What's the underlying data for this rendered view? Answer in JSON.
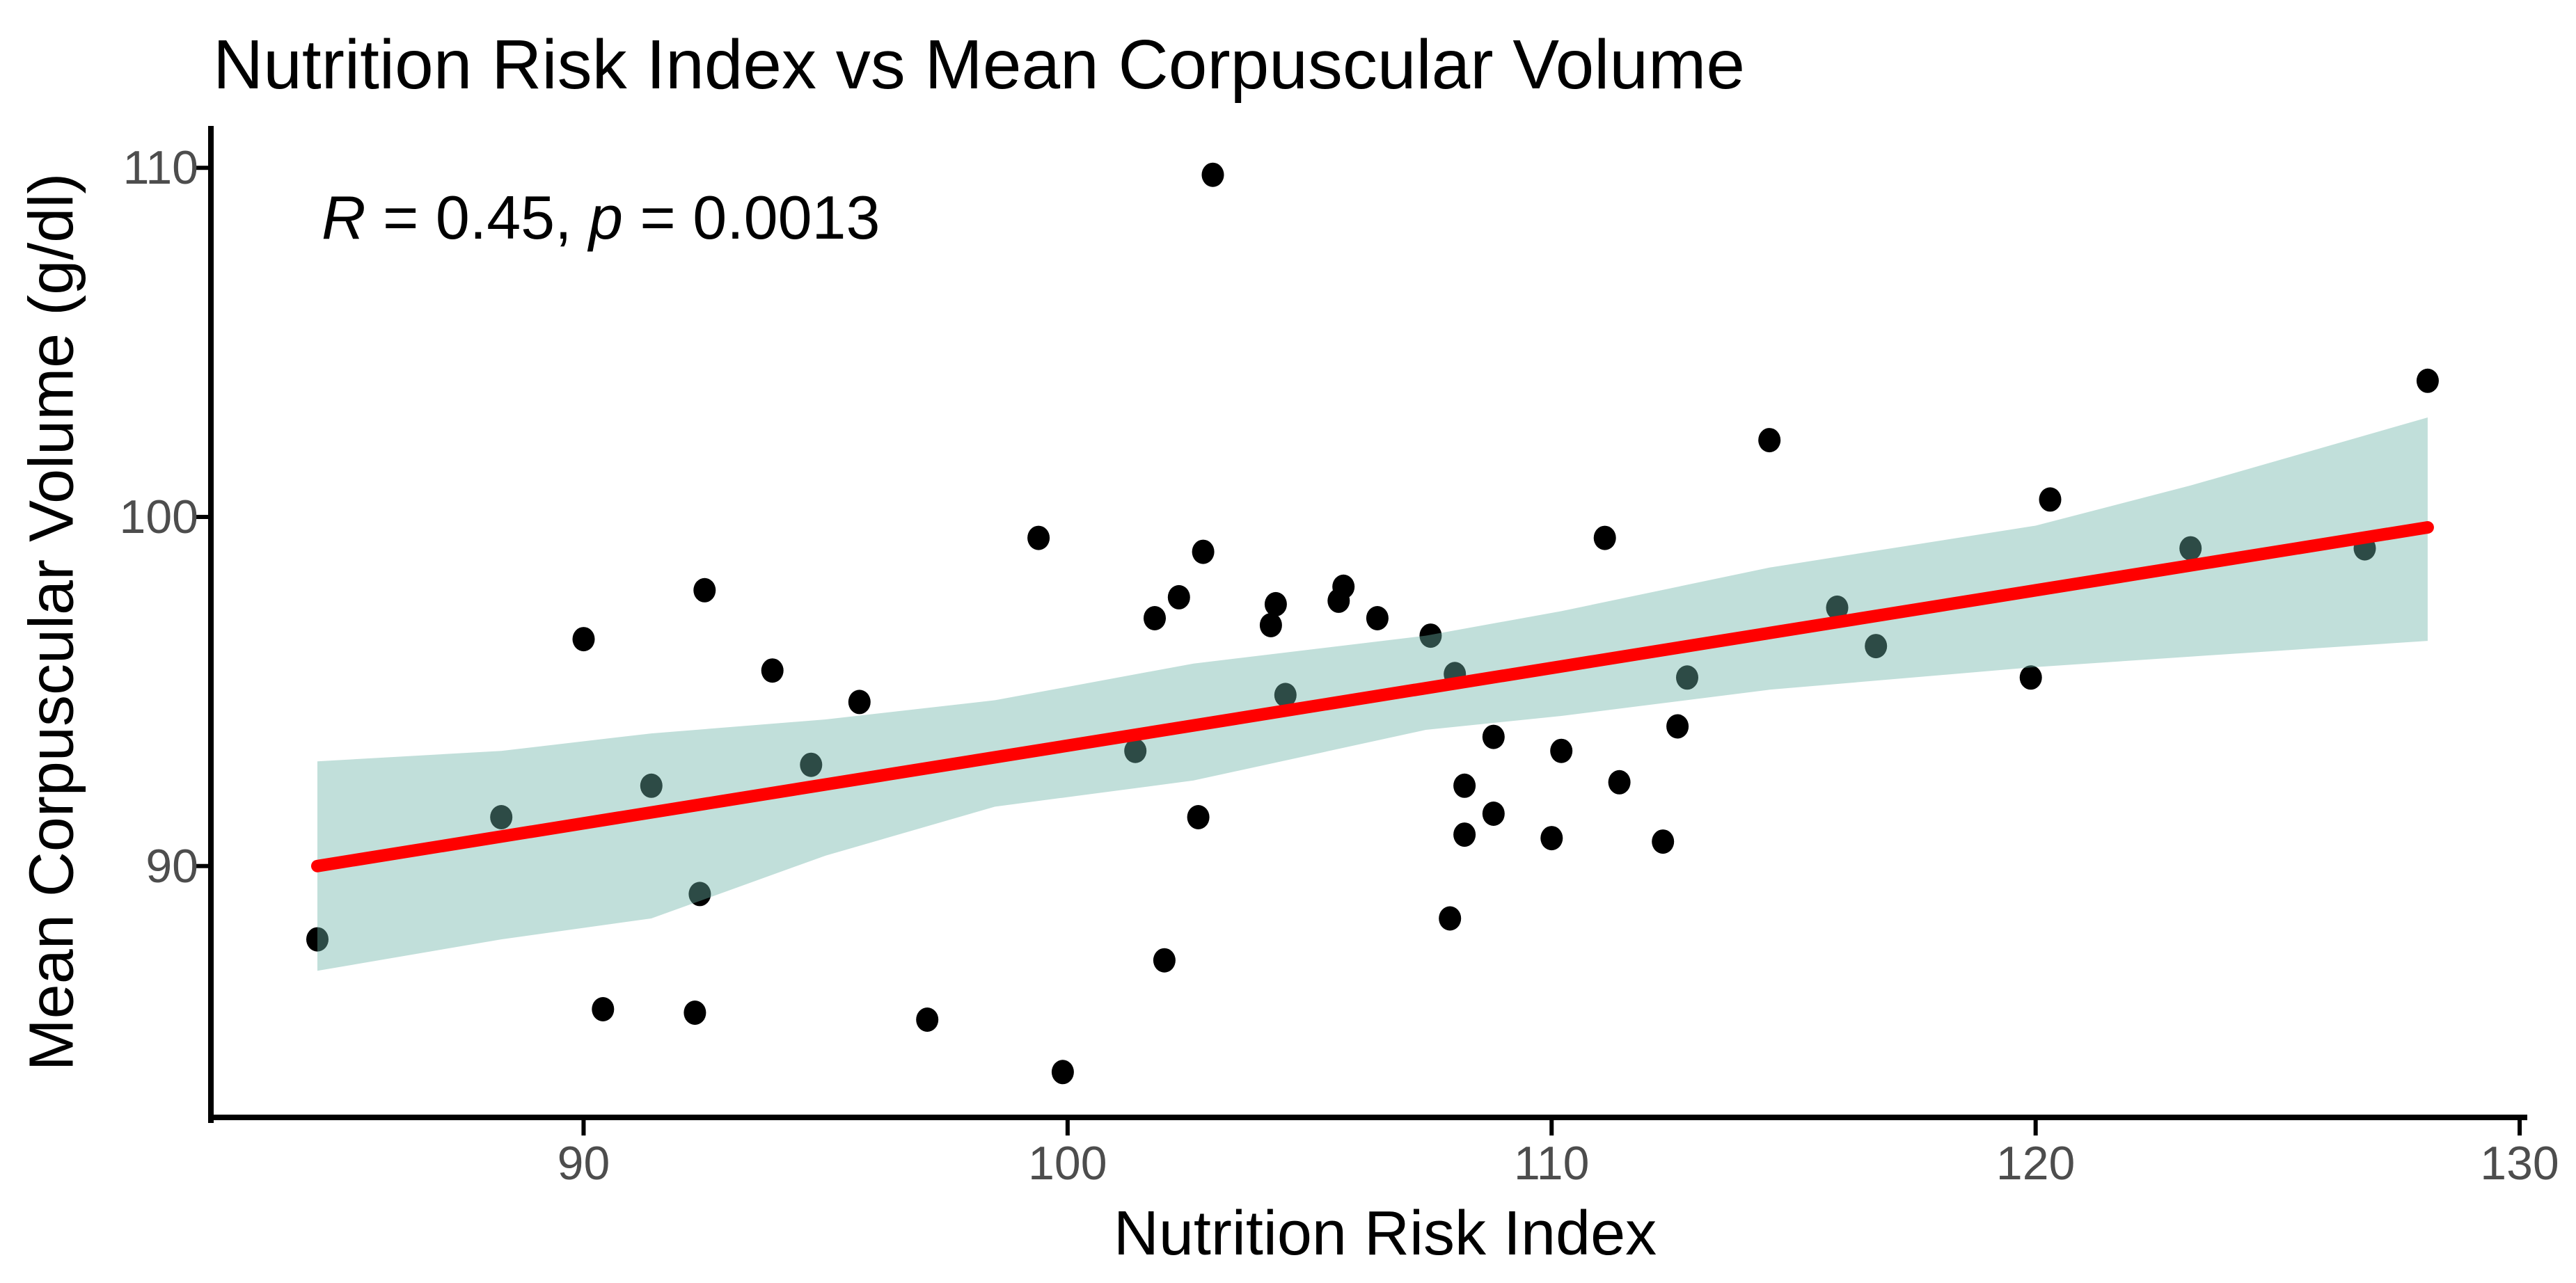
{
  "chart_data": {
    "type": "scatter",
    "title": "Nutrition Risk Index vs Mean Corpuscular Volume",
    "xlabel": "Nutrition Risk Index",
    "ylabel": "Mean Corpuscular Volume (g/dl)",
    "annotation": "R = 0.45, p = 0.0013",
    "legend": "none",
    "grid": false,
    "x_ticks": [
      90,
      100,
      110,
      120,
      130
    ],
    "y_ticks": [
      90,
      100,
      110
    ],
    "xlim": [
      82.3,
      130.1
    ],
    "ylim": [
      82.8,
      111.2
    ],
    "points": [
      [
        84.5,
        87.9
      ],
      [
        88.3,
        91.4
      ],
      [
        90.0,
        96.5
      ],
      [
        90.4,
        85.9
      ],
      [
        91.4,
        92.3
      ],
      [
        92.3,
        85.8
      ],
      [
        92.4,
        89.2
      ],
      [
        92.5,
        97.9
      ],
      [
        93.9,
        95.6
      ],
      [
        94.7,
        92.9
      ],
      [
        95.7,
        94.7
      ],
      [
        97.1,
        85.6
      ],
      [
        99.4,
        99.4
      ],
      [
        99.9,
        84.1
      ],
      [
        101.4,
        93.3
      ],
      [
        101.8,
        97.1
      ],
      [
        102.0,
        87.3
      ],
      [
        102.3,
        97.7
      ],
      [
        102.7,
        91.4
      ],
      [
        102.8,
        99.0
      ],
      [
        103.0,
        109.8
      ],
      [
        104.2,
        96.9
      ],
      [
        104.3,
        97.5
      ],
      [
        104.5,
        94.9
      ],
      [
        105.6,
        97.6
      ],
      [
        105.7,
        98.0
      ],
      [
        106.4,
        97.1
      ],
      [
        107.5,
        96.6
      ],
      [
        107.9,
        88.5
      ],
      [
        108.0,
        95.5
      ],
      [
        108.2,
        90.9
      ],
      [
        108.2,
        92.3
      ],
      [
        108.8,
        91.5
      ],
      [
        108.8,
        93.7
      ],
      [
        110.0,
        90.8
      ],
      [
        110.2,
        93.3
      ],
      [
        111.1,
        99.4
      ],
      [
        111.4,
        92.4
      ],
      [
        112.3,
        90.7
      ],
      [
        112.6,
        94.0
      ],
      [
        112.8,
        95.4
      ],
      [
        114.5,
        102.2
      ],
      [
        115.9,
        97.4
      ],
      [
        116.7,
        96.3
      ],
      [
        119.9,
        95.4
      ],
      [
        120.3,
        100.5
      ],
      [
        123.2,
        99.1
      ],
      [
        126.8,
        99.1
      ],
      [
        128.1,
        103.9
      ]
    ],
    "regression_line": {
      "x1": 84.5,
      "y1": 90.0,
      "x2": 128.1,
      "y2": 99.7
    },
    "confidence_band": {
      "x": [
        84.5,
        88.3,
        91.4,
        95.0,
        98.5,
        102.6,
        107.4,
        110.2,
        114.5,
        120.0,
        123.2,
        128.1
      ],
      "upper": [
        93.0,
        93.3,
        93.8,
        94.2,
        94.75,
        95.8,
        96.6,
        97.3,
        98.55,
        99.75,
        100.9,
        102.85
      ],
      "lower": [
        87.0,
        87.9,
        88.5,
        90.3,
        91.7,
        92.45,
        93.9,
        94.3,
        95.05,
        95.7,
        96.0,
        96.45
      ]
    }
  },
  "annotation_parts": {
    "r_symbol": "R",
    "r_text": " = 0.45, ",
    "p_symbol": "p",
    "p_text": " = 0.0013"
  },
  "colors": {
    "background": "#FFFFFF",
    "point": "#000000",
    "band": "rgba(108,179,166,0.42)",
    "regression_line": "#FF0000",
    "axis": "#000000",
    "tick_label": "#4D4D4D",
    "text": "#000000"
  }
}
